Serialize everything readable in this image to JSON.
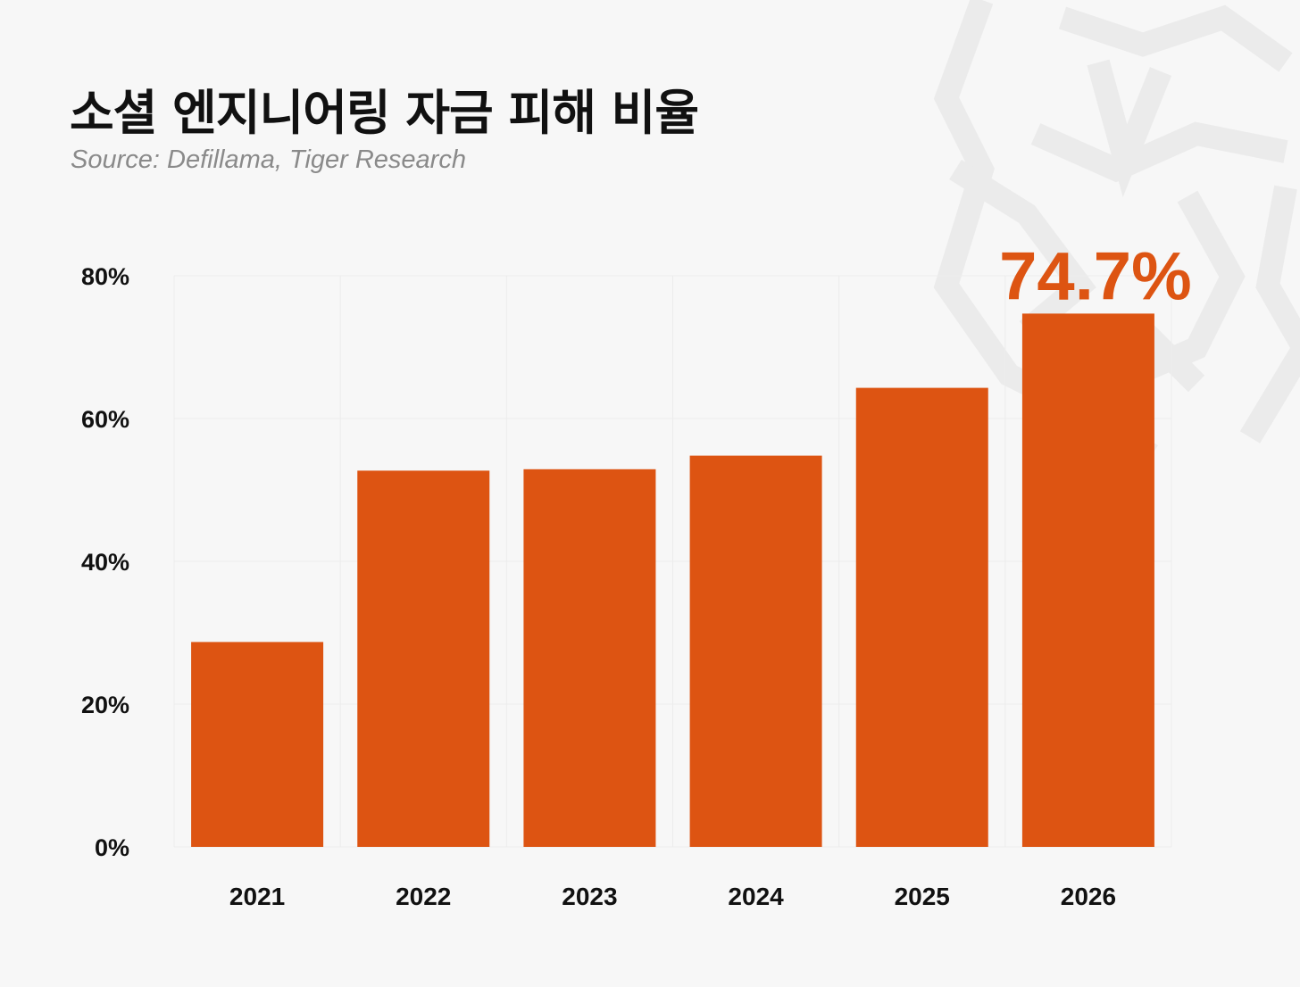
{
  "header": {
    "title": "소셜 엔지니어링 자금 피해 비율",
    "subtitle": "Source: Defillama, Tiger Research"
  },
  "colors": {
    "bar": "#dd5412",
    "highlight_label": "#dd5412",
    "text": "#111111",
    "grid": "#ececec",
    "background": "#f7f7f7"
  },
  "chart_data": {
    "type": "bar",
    "title": "소셜 엔지니어링 자금 피해 비율",
    "xlabel": "",
    "ylabel": "",
    "categories": [
      "2021",
      "2022",
      "2023",
      "2024",
      "2025",
      "2026"
    ],
    "values": [
      28.7,
      52.7,
      52.9,
      54.8,
      64.3,
      74.7
    ],
    "ylim": [
      0,
      80
    ],
    "yticks": [
      0,
      20,
      40,
      60,
      80
    ],
    "ytick_labels": [
      "0%",
      "20%",
      "40%",
      "60%",
      "80%"
    ],
    "grid": true,
    "annotations": [
      {
        "category": "2026",
        "text": "74.7%"
      }
    ]
  }
}
